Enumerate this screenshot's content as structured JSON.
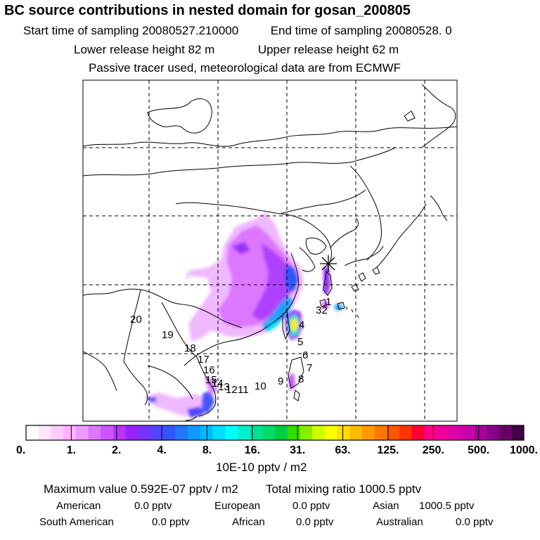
{
  "header": {
    "title": "BC  source contributions in nested domain for gosan_200805",
    "start_label": "Start time of sampling 20080527.210000",
    "end_label": "End time of sampling 20080528.     0",
    "lower_label": "Lower release height   82 m",
    "upper_label": "Upper release height   62 m",
    "info": "Passive tracer used, meteorological data are from ECMWF"
  },
  "map": {
    "station_icon": "star-marker-icon",
    "region_labels": [
      "1",
      "32",
      "4",
      "5",
      "6",
      "7",
      "8",
      "9",
      "10",
      "11",
      "12",
      "13",
      "14",
      "15",
      "16",
      "17",
      "18",
      "19",
      "20"
    ],
    "colors": {
      "coast": "#000000",
      "grid": "#000000"
    }
  },
  "colorbar": {
    "tick_labels": [
      "0.",
      "1.",
      "2.",
      "4.",
      "8.",
      "16.",
      "31.",
      "63.",
      "125.",
      "250.",
      "500.",
      "1000."
    ],
    "colors": [
      "#ffffff",
      "#ffe6ff",
      "#ffccff",
      "#ffb3ff",
      "#ee99ff",
      "#dd77ff",
      "#cc55ff",
      "#bb33ff",
      "#9922ff",
      "#7733ff",
      "#5544ff",
      "#3355ff",
      "#2277ff",
      "#1199ff",
      "#00bbff",
      "#00ddff",
      "#00ffff",
      "#00f0cc",
      "#00e099",
      "#00dd66",
      "#00cc44",
      "#33dd00",
      "#88ee00",
      "#ccff00",
      "#ffff00",
      "#ffdd00",
      "#ffbb00",
      "#ff9900",
      "#ff7700",
      "#ff5500",
      "#ff3300",
      "#ff0033",
      "#ff0088",
      "#ee0099",
      "#dd00aa",
      "#cc00aa",
      "#aa0099",
      "#880088",
      "#660066",
      "#440044"
    ],
    "units": "10E-10 pptv / m2"
  },
  "summary": {
    "max_value": "Maximum value  0.592E-07 pptv / m2",
    "total": "Total mixing ratio     1000.5 pptv",
    "regions": [
      {
        "name": "American",
        "value": "0.0 pptv"
      },
      {
        "name": "European",
        "value": "0.0 pptv"
      },
      {
        "name": "Asian",
        "value": "1000.5 pptv"
      },
      {
        "name": "South American",
        "value": "0.0 pptv"
      },
      {
        "name": "African",
        "value": "0.0 pptv"
      },
      {
        "name": "Australian",
        "value": "0.0 pptv"
      }
    ]
  }
}
